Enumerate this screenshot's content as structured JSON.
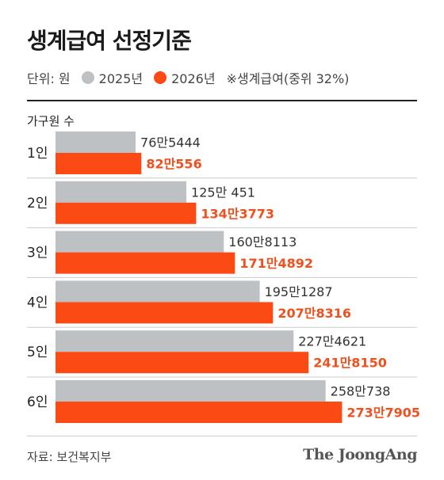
{
  "header": {
    "title": "생계급여 선정기준",
    "unit_label": "단위: 원",
    "note": "※생계급여(중위 32%)"
  },
  "axis": {
    "category_header": "가구원 수"
  },
  "footer": {
    "source": "자료: 보건복지부",
    "brand": "The JoongAng"
  },
  "colors": {
    "2025": "#bdc1c4",
    "2026": "#fc4a14",
    "label_2025": "#333333",
    "label_2026": "#f0501e"
  },
  "chart_data": {
    "type": "bar",
    "orientation": "horizontal",
    "categories": [
      "1인",
      "2인",
      "3인",
      "4인",
      "5인",
      "6인"
    ],
    "series": [
      {
        "name": "2025년",
        "values": [
          765444,
          1250451,
          1608113,
          1951287,
          2274621,
          2580738
        ],
        "labels": [
          "76만5444",
          "125만 451",
          "160만8113",
          "195만1287",
          "227만4621",
          "258만738"
        ]
      },
      {
        "name": "2026년",
        "values": [
          820556,
          1343773,
          1714892,
          2078316,
          2418150,
          2737905
        ],
        "labels": [
          "82만556",
          "134만3773",
          "171만4892",
          "207만8316",
          "241만8150",
          "273만7905"
        ]
      }
    ],
    "legend": "top-left",
    "grid": false
  }
}
